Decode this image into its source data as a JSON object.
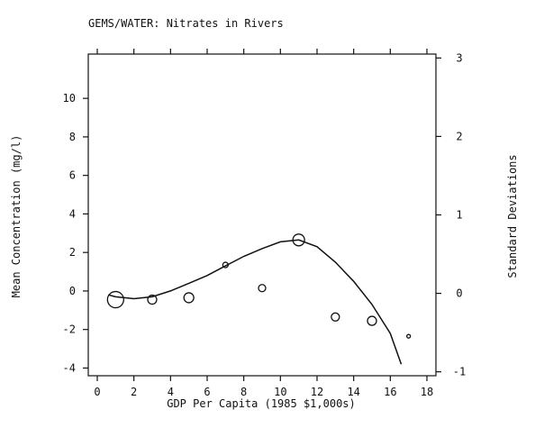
{
  "chart_data": {
    "type": "scatter",
    "title": "GEMS/WATER: Nitrates in Rivers",
    "xlabel": "GDP Per Capita (1985 $1,000s)",
    "ylabel": "Mean Concentration (mg/l)",
    "y2label": "Standard Deviations",
    "xlim": [
      0,
      18
    ],
    "ylim": [
      -4.4,
      12.3
    ],
    "y2lim": [
      -1.05,
      3.05
    ],
    "x_ticks": [
      0,
      2,
      4,
      6,
      8,
      10,
      12,
      14,
      16,
      18
    ],
    "y_ticks": [
      -4,
      -2,
      0,
      2,
      4,
      6,
      8,
      10
    ],
    "y2_ticks": [
      -1,
      0,
      1,
      2,
      3
    ],
    "grid": false,
    "points": [
      {
        "x": 1,
        "y": -0.45,
        "size": 9
      },
      {
        "x": 3,
        "y": -0.45,
        "size": 5
      },
      {
        "x": 5,
        "y": -0.35,
        "size": 5.5
      },
      {
        "x": 7,
        "y": 1.35,
        "size": 3
      },
      {
        "x": 9,
        "y": 0.15,
        "size": 4
      },
      {
        "x": 11,
        "y": 2.65,
        "size": 6.5
      },
      {
        "x": 13,
        "y": -1.35,
        "size": 4.5
      },
      {
        "x": 15,
        "y": -1.55,
        "size": 5
      },
      {
        "x": 17,
        "y": -2.35,
        "size": 2
      }
    ],
    "fit_curve": {
      "x": [
        0.6,
        1.0,
        2.0,
        3.0,
        4.0,
        5.0,
        6.0,
        7.0,
        8.0,
        9.0,
        10.0,
        11.0,
        12.0,
        13.0,
        14.0,
        15.0,
        16.0,
        16.6
      ],
      "y": [
        -0.2,
        -0.3,
        -0.4,
        -0.3,
        0.0,
        0.4,
        0.8,
        1.3,
        1.8,
        2.2,
        2.55,
        2.65,
        2.3,
        1.5,
        0.5,
        -0.7,
        -2.2,
        -3.8
      ]
    }
  }
}
